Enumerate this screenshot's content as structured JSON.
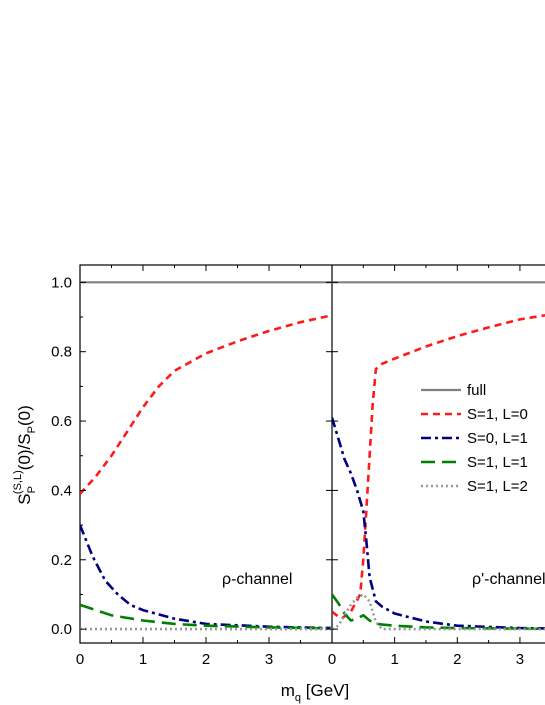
{
  "chart_data": {
    "type": "line",
    "xlabel": {
      "base": "m",
      "sub": "q",
      "rest": " [GeV]"
    },
    "ylabel": {
      "s1": "S",
      "s1sub": "P",
      "s1sup": "(S,L)",
      "mid": "(0)/S",
      "s2sub": "P",
      "end": "(0)"
    },
    "ylim": [
      -0.04,
      1.05
    ],
    "yticks": [
      0.0,
      0.2,
      0.4,
      0.6,
      0.8,
      1.0
    ],
    "ytick_labels": [
      "0.0",
      "0.2",
      "0.4",
      "0.6",
      "0.8",
      "1.0"
    ],
    "panels": [
      {
        "annotation": "ρ-channel",
        "xlim": [
          0,
          4
        ],
        "xticks": [
          0,
          1,
          2,
          3
        ],
        "xtick_labels": [
          "0",
          "1",
          "2",
          "3"
        ],
        "series": [
          {
            "key": "full",
            "color": "#808080",
            "x": [
              0,
              4
            ],
            "y": [
              1.0,
              1.0
            ]
          },
          {
            "key": "s1l0",
            "color": "#ff1a1a",
            "x": [
              0,
              0.25,
              0.5,
              0.75,
              1.0,
              1.25,
              1.5,
              2.0,
              2.5,
              3.0,
              3.5,
              4.0
            ],
            "y": [
              0.39,
              0.44,
              0.5,
              0.57,
              0.64,
              0.7,
              0.745,
              0.795,
              0.83,
              0.86,
              0.885,
              0.905
            ]
          },
          {
            "key": "s0l1",
            "color": "#000080",
            "x": [
              0,
              0.2,
              0.4,
              0.6,
              0.8,
              1.0,
              1.5,
              2.0,
              3.0,
              4.0
            ],
            "y": [
              0.3,
              0.21,
              0.14,
              0.1,
              0.07,
              0.055,
              0.03,
              0.015,
              0.007,
              0.003
            ]
          },
          {
            "key": "s1l1",
            "color": "#008000",
            "x": [
              0,
              0.5,
              1.0,
              1.5,
              2.0,
              3.0,
              4.0
            ],
            "y": [
              0.07,
              0.04,
              0.025,
              0.015,
              0.01,
              0.005,
              0.002
            ]
          },
          {
            "key": "s1l2",
            "color": "#999999",
            "x": [
              0,
              4
            ],
            "y": [
              0.0,
              0.0
            ]
          }
        ]
      },
      {
        "annotation": "ρ'-channel",
        "xlim": [
          0,
          3.4
        ],
        "xticks": [
          0,
          1,
          2,
          3
        ],
        "xtick_labels": [
          "0",
          "1",
          "2",
          "3"
        ],
        "series": [
          {
            "key": "full",
            "color": "#808080",
            "x": [
              0,
              3.4
            ],
            "y": [
              1.0,
              1.0
            ]
          },
          {
            "key": "s1l0",
            "color": "#ff1a1a",
            "x": [
              0,
              0.15,
              0.3,
              0.45,
              0.5,
              0.55,
              0.6,
              0.65,
              0.7,
              0.8,
              1.0,
              1.5,
              2.0,
              2.5,
              3.0,
              3.4
            ],
            "y": [
              0.05,
              0.03,
              0.05,
              0.1,
              0.2,
              0.35,
              0.5,
              0.65,
              0.75,
              0.765,
              0.78,
              0.815,
              0.845,
              0.87,
              0.893,
              0.905
            ]
          },
          {
            "key": "s0l1",
            "color": "#000080",
            "x": [
              0,
              0.1,
              0.2,
              0.3,
              0.4,
              0.5,
              0.55,
              0.6,
              0.7,
              0.8,
              1.0,
              1.5,
              2.0,
              3.0,
              3.4
            ],
            "y": [
              0.61,
              0.55,
              0.49,
              0.45,
              0.4,
              0.34,
              0.25,
              0.15,
              0.08,
              0.065,
              0.045,
              0.022,
              0.01,
              0.003,
              0.002
            ]
          },
          {
            "key": "s1l1",
            "color": "#008000",
            "x": [
              0,
              0.1,
              0.2,
              0.3,
              0.4,
              0.5,
              0.6,
              0.7,
              1.0,
              1.5,
              2.0,
              3.4
            ],
            "y": [
              0.1,
              0.075,
              0.045,
              0.025,
              0.03,
              0.04,
              0.025,
              0.015,
              0.01,
              0.005,
              0.003,
              0.001
            ]
          },
          {
            "key": "s1l2",
            "color": "#999999",
            "x": [
              0,
              0.1,
              0.2,
              0.3,
              0.4,
              0.5,
              0.6,
              0.7,
              0.8,
              1.0,
              2.0,
              3.4
            ],
            "y": [
              0.0,
              0.01,
              0.04,
              0.07,
              0.09,
              0.1,
              0.08,
              0.02,
              0.0,
              0.0,
              0.0,
              0.0
            ]
          }
        ]
      }
    ],
    "legend": [
      {
        "key": "full",
        "label": "full",
        "color": "#808080"
      },
      {
        "key": "s1l0",
        "label": "S=1, L=0",
        "color": "#ff1a1a"
      },
      {
        "key": "s0l1",
        "label": "S=0, L=1",
        "color": "#000080"
      },
      {
        "key": "s1l1",
        "label": "S=1, L=1",
        "color": "#008000"
      },
      {
        "key": "s1l2",
        "label": "S=1, L=2",
        "color": "#999999"
      }
    ],
    "legend_placement": "right panel, middle-right"
  }
}
